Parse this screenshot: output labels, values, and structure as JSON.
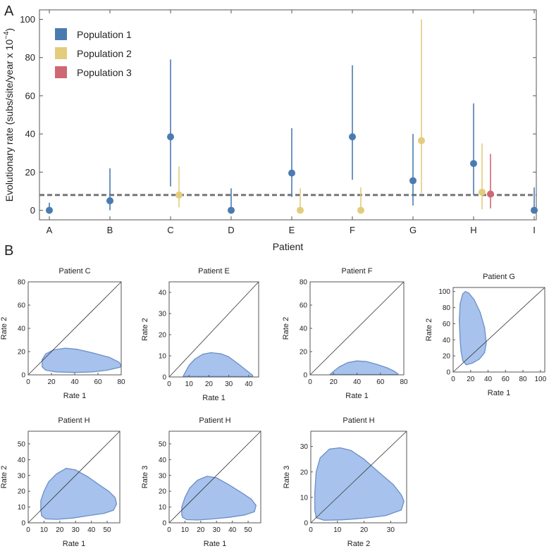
{
  "panelA": {
    "letter": "A",
    "title": "",
    "xlabel": "Patient",
    "ylabel": "Evolutionary rate (subs/site/year x 10",
    "ylabel_exp": "−4",
    "ylabel_end": ")",
    "ylim": [
      -5,
      105
    ],
    "yticks": [
      0,
      20,
      40,
      60,
      80,
      100
    ],
    "reference_line": 8,
    "legend": [
      {
        "name": "Population 1",
        "color": "#4a7bb0"
      },
      {
        "name": "Population 2",
        "color": "#e3cc7c"
      },
      {
        "name": "Population 3",
        "color": "#d06874"
      }
    ]
  },
  "chart_data": [
    {
      "type": "scatter",
      "title": "",
      "xlabel": "Patient",
      "ylabel": "Evolutionary rate (subs/site/year x 10^-4)",
      "categories": [
        "A",
        "B",
        "C",
        "D",
        "E",
        "F",
        "G",
        "H",
        "I"
      ],
      "ylim": [
        -5,
        105
      ],
      "series": [
        {
          "name": "Population 1",
          "color": "#4a7bb0",
          "points": [
            {
              "cat": "A",
              "y": 0,
              "lo": 0,
              "hi": 4
            },
            {
              "cat": "B",
              "y": 5,
              "lo": 0,
              "hi": 22
            },
            {
              "cat": "C",
              "y": 38.5,
              "lo": 12.5,
              "hi": 79
            },
            {
              "cat": "D",
              "y": 0,
              "lo": 0,
              "hi": 11.5
            },
            {
              "cat": "E",
              "y": 19.5,
              "lo": 7,
              "hi": 43
            },
            {
              "cat": "F",
              "y": 38.5,
              "lo": 16,
              "hi": 76
            },
            {
              "cat": "G",
              "y": 15.5,
              "lo": 2.5,
              "hi": 40
            },
            {
              "cat": "H",
              "y": 24.5,
              "lo": 8,
              "hi": 56
            },
            {
              "cat": "I",
              "y": 0,
              "lo": 0,
              "hi": 12
            }
          ]
        },
        {
          "name": "Population 2",
          "color": "#e3cc7c",
          "points": [
            {
              "cat": "C",
              "y": 8,
              "lo": 1.5,
              "hi": 23
            },
            {
              "cat": "E",
              "y": 0,
              "lo": 0,
              "hi": 11.5
            },
            {
              "cat": "F",
              "y": 0,
              "lo": 0,
              "hi": 12
            },
            {
              "cat": "G",
              "y": 36.5,
              "lo": 9,
              "hi": 100
            },
            {
              "cat": "H",
              "y": 9.5,
              "lo": 0.5,
              "hi": 35
            }
          ]
        },
        {
          "name": "Population 3",
          "color": "#d06874",
          "points": [
            {
              "cat": "H",
              "y": 8.5,
              "lo": 1,
              "hi": 29.5
            }
          ]
        }
      ]
    },
    {
      "type": "area",
      "title": "Patient C",
      "xlabel": "Rate 1",
      "ylabel": "Rate 2",
      "xlim": [
        0,
        80
      ],
      "ylim": [
        0,
        80
      ],
      "xticks": [
        0,
        20,
        40,
        60,
        80
      ],
      "yticks": [
        0,
        20,
        40,
        60,
        80
      ],
      "region": [
        [
          12,
          7
        ],
        [
          15,
          4
        ],
        [
          24,
          2.5
        ],
        [
          40,
          2
        ],
        [
          55,
          2.5
        ],
        [
          68,
          4
        ],
        [
          79,
          6.5
        ],
        [
          80,
          8
        ],
        [
          78,
          11
        ],
        [
          70,
          15
        ],
        [
          55,
          19
        ],
        [
          42,
          22
        ],
        [
          32,
          23
        ],
        [
          22,
          21.5
        ],
        [
          15,
          18
        ],
        [
          12,
          13
        ]
      ]
    },
    {
      "type": "area",
      "title": "Patient E",
      "xlabel": "Rate 1",
      "ylabel": "Rate 2",
      "xlim": [
        0,
        45
      ],
      "ylim": [
        0,
        45
      ],
      "xticks": [
        0,
        10,
        20,
        30,
        40
      ],
      "yticks": [
        0,
        10,
        20,
        30,
        40
      ],
      "region": [
        [
          7,
          0.3
        ],
        [
          8,
          2
        ],
        [
          10,
          5.5
        ],
        [
          13,
          8.5
        ],
        [
          17,
          10.8
        ],
        [
          21,
          11.5
        ],
        [
          26,
          11
        ],
        [
          30,
          9.5
        ],
        [
          35,
          6
        ],
        [
          39,
          3
        ],
        [
          42,
          0.8
        ],
        [
          42,
          0.2
        ]
      ]
    },
    {
      "type": "area",
      "title": "Patient F",
      "xlabel": "Rate 1",
      "ylabel": "Rate 2",
      "xlim": [
        0,
        80
      ],
      "ylim": [
        0,
        80
      ],
      "xticks": [
        0,
        20,
        40,
        60,
        80
      ],
      "yticks": [
        0,
        20,
        40,
        60,
        80
      ],
      "region": [
        [
          17,
          0.3
        ],
        [
          20,
          3
        ],
        [
          25,
          7
        ],
        [
          32,
          10.5
        ],
        [
          40,
          12
        ],
        [
          48,
          11.5
        ],
        [
          57,
          9
        ],
        [
          66,
          6
        ],
        [
          72,
          3
        ],
        [
          75,
          0.8
        ],
        [
          75,
          0.2
        ]
      ]
    },
    {
      "type": "area",
      "title": "Patient G",
      "xlabel": "Rate 1",
      "ylabel": "Rate 2",
      "xlim": [
        0,
        105
      ],
      "ylim": [
        0,
        105
      ],
      "xticks": [
        0,
        20,
        40,
        60,
        80,
        100
      ],
      "yticks": [
        0,
        20,
        40,
        60,
        80,
        100
      ],
      "region": [
        [
          8,
          40
        ],
        [
          7,
          65
        ],
        [
          8,
          85
        ],
        [
          11,
          97
        ],
        [
          14,
          100
        ],
        [
          18,
          98
        ],
        [
          24,
          90
        ],
        [
          31,
          74
        ],
        [
          36,
          55
        ],
        [
          38,
          36
        ],
        [
          36,
          24
        ],
        [
          30,
          16
        ],
        [
          22,
          11
        ],
        [
          15,
          9
        ],
        [
          11,
          14
        ],
        [
          9,
          26
        ]
      ]
    },
    {
      "type": "area",
      "title": "Patient H",
      "xlabel": "Rate 1",
      "ylabel": "Rate 2",
      "xlim": [
        0,
        58
      ],
      "ylim": [
        0,
        58
      ],
      "xticks": [
        0,
        10,
        20,
        30,
        40,
        50
      ],
      "yticks": [
        0,
        10,
        20,
        30,
        40,
        50
      ],
      "region": [
        [
          8,
          8
        ],
        [
          8,
          14
        ],
        [
          10,
          20
        ],
        [
          13,
          26
        ],
        [
          18,
          31
        ],
        [
          24,
          34.5
        ],
        [
          30,
          33.5
        ],
        [
          38,
          29
        ],
        [
          45,
          24
        ],
        [
          51,
          20
        ],
        [
          55,
          16
        ],
        [
          56,
          12
        ],
        [
          54,
          8
        ],
        [
          48,
          6
        ],
        [
          38,
          4.5
        ],
        [
          28,
          3
        ],
        [
          18,
          2.2
        ],
        [
          11,
          2.5
        ],
        [
          8.5,
          4.5
        ]
      ]
    },
    {
      "type": "area",
      "title": "Patient H",
      "xlabel": "Rate 1",
      "ylabel": "Rate 3",
      "xlim": [
        0,
        58
      ],
      "ylim": [
        0,
        58
      ],
      "xticks": [
        0,
        10,
        20,
        30,
        40,
        50
      ],
      "yticks": [
        0,
        10,
        20,
        30,
        40,
        50
      ],
      "region": [
        [
          8,
          5
        ],
        [
          8,
          10
        ],
        [
          10,
          16
        ],
        [
          13,
          22
        ],
        [
          18,
          27
        ],
        [
          24,
          29.5
        ],
        [
          30,
          28.5
        ],
        [
          38,
          24
        ],
        [
          46,
          19
        ],
        [
          52,
          15
        ],
        [
          55,
          11
        ],
        [
          54,
          7
        ],
        [
          48,
          5
        ],
        [
          38,
          3.5
        ],
        [
          28,
          2.5
        ],
        [
          18,
          1.8
        ],
        [
          11,
          2
        ],
        [
          8.5,
          3.5
        ]
      ]
    },
    {
      "type": "area",
      "title": "Patient H",
      "xlabel": "Rate 2",
      "ylabel": "Rate 3",
      "xlim": [
        0,
        36
      ],
      "ylim": [
        0,
        36
      ],
      "xticks": [
        0,
        10,
        20,
        30
      ],
      "yticks": [
        0,
        10,
        20,
        30
      ],
      "region": [
        [
          1.5,
          5
        ],
        [
          1.5,
          12
        ],
        [
          2,
          20
        ],
        [
          3.5,
          25.5
        ],
        [
          7,
          29
        ],
        [
          11,
          29.5
        ],
        [
          15,
          28.5
        ],
        [
          20,
          25
        ],
        [
          26,
          19.5
        ],
        [
          31,
          15
        ],
        [
          34,
          11
        ],
        [
          35,
          8.5
        ],
        [
          34,
          5
        ],
        [
          28,
          2.8
        ],
        [
          20,
          1.8
        ],
        [
          12,
          1.2
        ],
        [
          5,
          1
        ],
        [
          2,
          2
        ]
      ]
    }
  ],
  "panelB": {
    "letter": "B",
    "plots": [
      {
        "title": "Patient C",
        "xlabel": "Rate 1",
        "ylabel": "Rate 2"
      },
      {
        "title": "Patient E",
        "xlabel": "Rate 1",
        "ylabel": "Rate 2"
      },
      {
        "title": "Patient F",
        "xlabel": "Rate 1",
        "ylabel": "Rate 2"
      },
      {
        "title": "Patient G",
        "xlabel": "Rate 1",
        "ylabel": "Rate 2"
      },
      {
        "title": "Patient H",
        "xlabel": "Rate 1",
        "ylabel": "Rate 2"
      },
      {
        "title": "Patient H",
        "xlabel": "Rate 1",
        "ylabel": "Rate 3"
      },
      {
        "title": "Patient H",
        "xlabel": "Rate 2",
        "ylabel": "Rate 3"
      }
    ]
  },
  "colors": {
    "region_fill": "#a7c2ec",
    "region_stroke": "#6b8fc8",
    "reference_line": "#777777",
    "axis": "#555555"
  }
}
